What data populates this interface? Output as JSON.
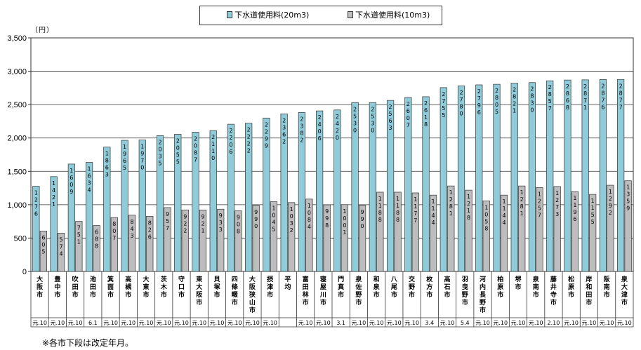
{
  "chart_data": {
    "type": "bar",
    "unit_label": "（円）",
    "ylim": [
      0,
      3500
    ],
    "yticks": [
      "0",
      "500",
      "1,000",
      "1,500",
      "2,000",
      "2,500",
      "3,000",
      "3,500"
    ],
    "grid": true,
    "legend_position": "top",
    "colors": {
      "series_20m3": "#8fcbd8",
      "series_10m3": "#bdbdbd"
    },
    "series": [
      {
        "name": "下水道使用料(20m3)",
        "values": [
          1276,
          1421,
          1609,
          1634,
          1863,
          1965,
          1970,
          2035,
          2055,
          2087,
          2110,
          2206,
          2222,
          2299,
          2362,
          2382,
          2406,
          2420,
          2530,
          2530,
          2563,
          2607,
          2618,
          2755,
          2780,
          2796,
          2805,
          2821,
          2830,
          2857,
          2868,
          2871,
          2876,
          2877
        ]
      },
      {
        "name": "下水道使用料(10m3)",
        "values": [
          605,
          574,
          751,
          688,
          807,
          843,
          826,
          957,
          922,
          921,
          933,
          908,
          990,
          1045,
          1032,
          1084,
          998,
          1001,
          990,
          1188,
          1188,
          1177,
          1144,
          1281,
          1218,
          1058,
          1144,
          1281,
          1257,
          1273,
          1196,
          1155,
          1292,
          1359
        ]
      }
    ],
    "categories": [
      "大阪市",
      "豊中市",
      "吹田市",
      "池田市",
      "箕面市",
      "高槻市",
      "大東市",
      "茨木市",
      "守口市",
      "東大阪市",
      "貝塚市",
      "四條畷市",
      "大阪狭山市",
      "摂津市",
      "平均",
      "富田林市",
      "寝屋川市",
      "門真市",
      "泉佐野市",
      "和泉市",
      "八尾市",
      "交野市",
      "枚方市",
      "高石市",
      "羽曳野市",
      "河内長野市",
      "柏原市",
      "堺市",
      "泉南市",
      "藤井寺市",
      "松原市",
      "岸和田市",
      "阪南市",
      "泉大津市"
    ],
    "revision_dates": [
      "元.10",
      "元.10",
      "元.10",
      "6.1",
      "元.10",
      "元.10",
      "元.10",
      "元.10",
      "元.10",
      "元.10",
      "元.10",
      "元.10",
      "元.10",
      "元.10",
      "",
      "元.10",
      "元.10",
      "3.1",
      "元.10",
      "元.10",
      "元.10",
      "元.10",
      "3.4",
      "元.10",
      "5.4",
      "元.10",
      "元.10",
      "元.10",
      "元.10",
      "2.10",
      "元.10",
      "元.10",
      "元.10",
      "元.10"
    ]
  },
  "footnote": "※各市下段は改定年月。"
}
